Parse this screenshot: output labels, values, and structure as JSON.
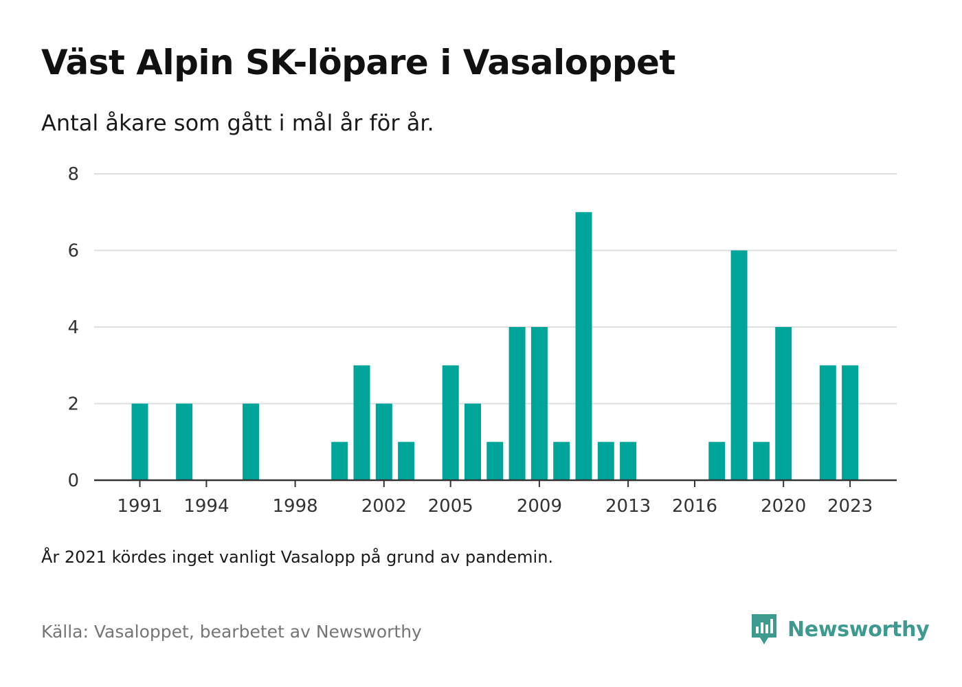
{
  "title": "Väst Alpin SK-löpare i Vasaloppet",
  "subtitle": "Antal åkare som gått i mål år för år.",
  "note": "År 2021 kördes inget vanligt Vasalopp på grund av pandemin.",
  "source": "Källa: Vasaloppet, bearbetet av Newsworthy",
  "brand": {
    "name": "Newsworthy",
    "icon": "newsworthy-logo-icon"
  },
  "colors": {
    "bar": "#00a59a",
    "grid": "#dddddd",
    "axis": "#333333",
    "brand": "#3d9a8f"
  },
  "chart_data": {
    "type": "bar",
    "title": "Väst Alpin SK-löpare i Vasaloppet",
    "xlabel": "",
    "ylabel": "",
    "ylim": [
      0,
      8
    ],
    "yticks": [
      0,
      2,
      4,
      6,
      8
    ],
    "xtick_labels": [
      "1991",
      "1994",
      "1998",
      "2002",
      "2005",
      "2009",
      "2013",
      "2016",
      "2020",
      "2023"
    ],
    "grid": true,
    "categories": [
      "1991",
      "1992",
      "1993",
      "1994",
      "1995",
      "1996",
      "1997",
      "1998",
      "1999",
      "2000",
      "2001",
      "2002",
      "2003",
      "2004",
      "2005",
      "2006",
      "2007",
      "2008",
      "2009",
      "2010",
      "2011",
      "2012",
      "2013",
      "2014",
      "2015",
      "2016",
      "2017",
      "2018",
      "2019",
      "2020",
      "2021",
      "2022",
      "2023"
    ],
    "values": [
      2,
      0,
      2,
      0,
      0,
      2,
      0,
      0,
      0,
      1,
      3,
      2,
      1,
      0,
      3,
      2,
      1,
      4,
      4,
      1,
      7,
      1,
      1,
      0,
      0,
      0,
      1,
      6,
      1,
      4,
      0,
      3,
      3
    ]
  }
}
